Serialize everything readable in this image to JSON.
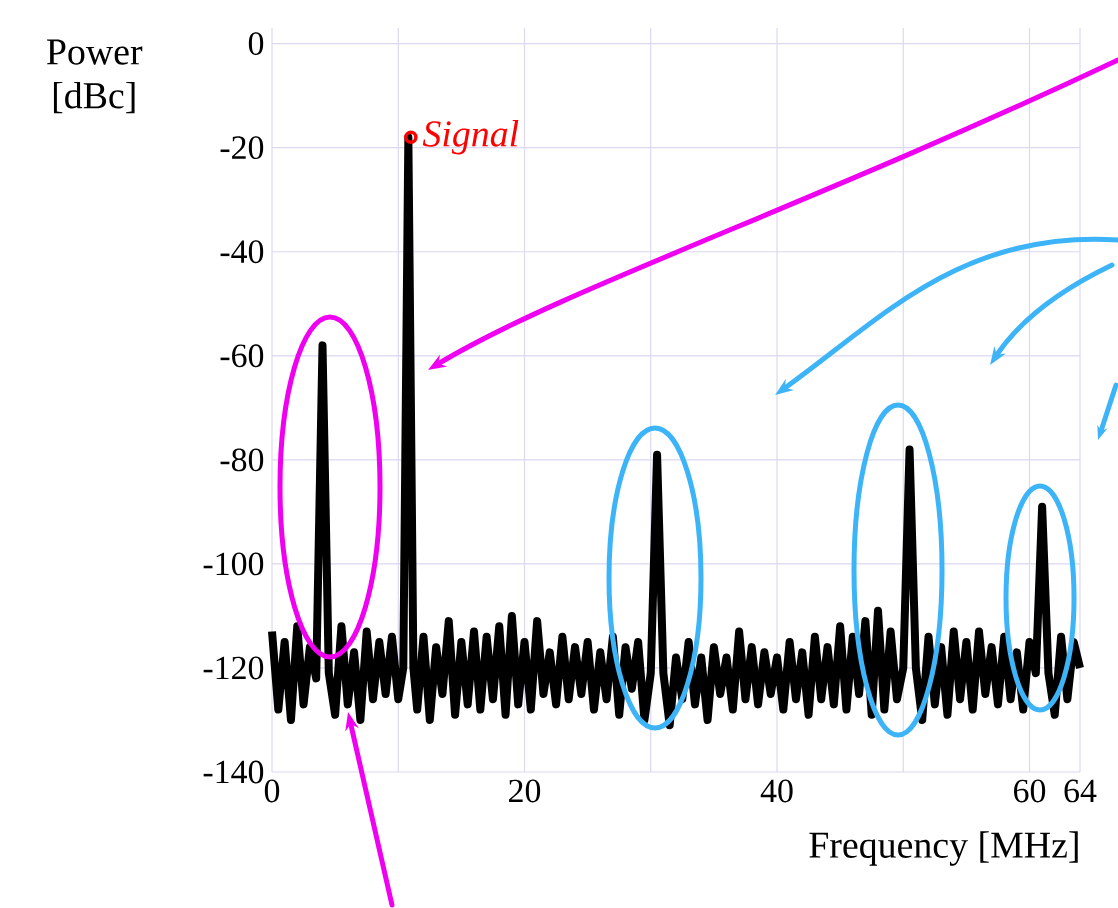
{
  "chart_data": {
    "type": "line",
    "xlabel": "Frequency  [MHz]",
    "ylabel": "Power [dBc]",
    "xlim": [
      0,
      64
    ],
    "ylim": [
      -140,
      3
    ],
    "xticks": [
      0,
      {
        "value": 10,
        "label": null
      },
      20,
      {
        "value": 30,
        "label": null
      },
      40,
      {
        "value": 50,
        "label": null
      },
      60,
      64
    ],
    "yticks": [
      -140,
      -120,
      -100,
      -80,
      -60,
      -40,
      -20,
      0
    ],
    "grid": true,
    "marker": "none",
    "line_style": "solid",
    "annotations": [
      {
        "text": "Signal",
        "x": 11,
        "y": -18
      }
    ],
    "series": [
      {
        "color": "#000000",
        "x": [
          0,
          0.5,
          1,
          1.5,
          2,
          2.5,
          3,
          3.5,
          4,
          4.5,
          5,
          5.5,
          6,
          6.5,
          7,
          7.5,
          8,
          8.5,
          9,
          9.5,
          10,
          10.4,
          10.8,
          11.2,
          11.5,
          12,
          12.5,
          13,
          13.5,
          14,
          14.5,
          15,
          15.5,
          16,
          16.5,
          17,
          17.5,
          18,
          18.5,
          19,
          19.5,
          20,
          20.5,
          21,
          21.5,
          22,
          22.5,
          23,
          23.5,
          24,
          24.5,
          25,
          25.5,
          26,
          26.5,
          27,
          27.5,
          28,
          28.5,
          29,
          29.5,
          30,
          30.5,
          31,
          31.5,
          32,
          32.5,
          33,
          33.5,
          34,
          34.5,
          35,
          35.5,
          36,
          36.5,
          37,
          37.5,
          38,
          38.5,
          39,
          39.5,
          40,
          40.5,
          41,
          41.5,
          42,
          42.5,
          43,
          43.5,
          44,
          44.5,
          45,
          45.5,
          46,
          46.5,
          47,
          47.5,
          48,
          48.5,
          49,
          49.5,
          50,
          50.5,
          51,
          51.5,
          52,
          52.5,
          53,
          53.5,
          54,
          54.5,
          55,
          55.5,
          56,
          56.5,
          57,
          57.5,
          58,
          58.5,
          59,
          59.5,
          60,
          60.5,
          61,
          61.5,
          62,
          62.5,
          63,
          63.5,
          64
        ],
        "values": [
          -113,
          -128,
          -115,
          -130,
          -112,
          -127,
          -116,
          -122,
          -58,
          -121,
          -129,
          -112,
          -127,
          -117,
          -130,
          -113,
          -126,
          -115,
          -125,
          -114,
          -126,
          -120,
          -18,
          -120,
          -128,
          -114,
          -130,
          -116,
          -125,
          -111,
          -129,
          -115,
          -127,
          -113,
          -128,
          -114,
          -126,
          -112,
          -129,
          -110,
          -127,
          -115,
          -128,
          -111,
          -125,
          -117,
          -127,
          -114,
          -126,
          -116,
          -125,
          -115,
          -128,
          -117,
          -126,
          -114,
          -129,
          -116,
          -124,
          -115,
          -130,
          -121,
          -79,
          -121,
          -131,
          -118,
          -126,
          -115,
          -127,
          -118,
          -130,
          -116,
          -125,
          -118,
          -128,
          -113,
          -126,
          -116,
          -127,
          -117,
          -125,
          -118,
          -128,
          -115,
          -126,
          -117,
          -129,
          -114,
          -126,
          -116,
          -127,
          -112,
          -128,
          -114,
          -125,
          -111,
          -129,
          -109,
          -128,
          -113,
          -126,
          -120,
          -78,
          -120,
          -130,
          -114,
          -127,
          -116,
          -129,
          -113,
          -126,
          -115,
          -128,
          -113,
          -125,
          -116,
          -127,
          -114,
          -126,
          -117,
          -128,
          -115,
          -121,
          -89,
          -121,
          -129,
          -114,
          -126,
          -115,
          -120
        ]
      }
    ]
  }
}
